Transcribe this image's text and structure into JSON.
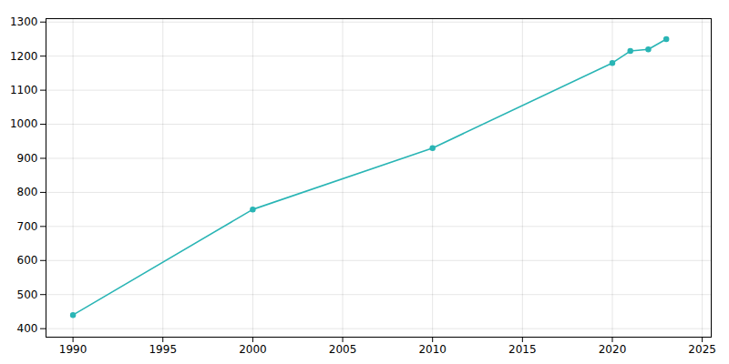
{
  "chart_data": {
    "type": "line",
    "x": [
      1990,
      2000,
      2010,
      2020,
      2021,
      2022,
      2023
    ],
    "values": [
      440,
      750,
      930,
      1180,
      1215,
      1220,
      1250
    ],
    "color": "#2ab5b5",
    "marker": "circle",
    "xlim": [
      1988.5,
      2025.5
    ],
    "ylim": [
      375,
      1310
    ],
    "xticks": [
      1990,
      1995,
      2000,
      2005,
      2010,
      2015,
      2020,
      2025
    ],
    "yticks": [
      400,
      500,
      600,
      700,
      800,
      900,
      1000,
      1100,
      1200,
      1300
    ],
    "grid": true
  }
}
